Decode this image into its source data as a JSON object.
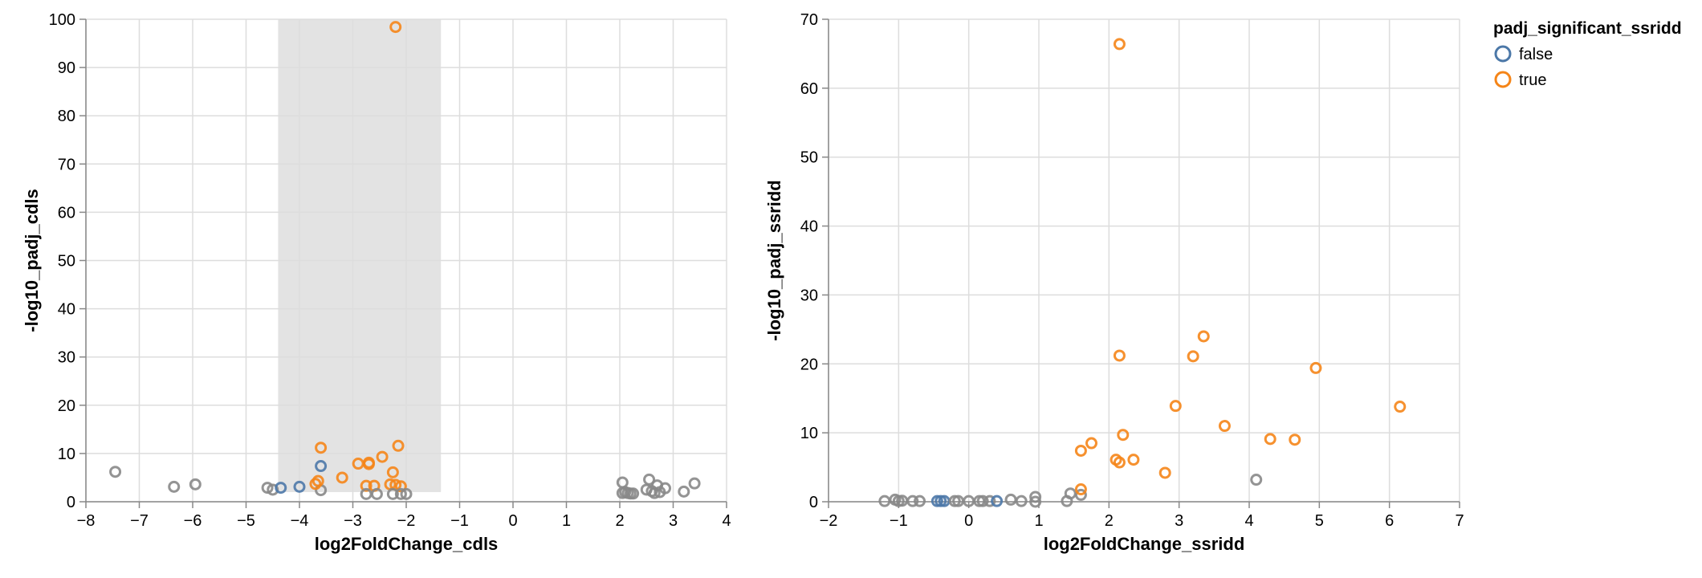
{
  "colors": {
    "false": "#4c78a8",
    "true": "#f58518",
    "gray": "#888888",
    "selection": "#e3e3e3"
  },
  "legend": {
    "title": "padj_significant_ssridd",
    "items": [
      {
        "label": "false",
        "color": "#4c78a8"
      },
      {
        "label": "true",
        "color": "#f58518"
      }
    ]
  },
  "chart_data": [
    {
      "type": "scatter",
      "xlabel": "log2FoldChange_cdls",
      "ylabel": "-log10_padj_cdls",
      "xlim": [
        -8,
        4
      ],
      "ylim": [
        0,
        100
      ],
      "xticks": [
        -8,
        -7,
        -6,
        -5,
        -4,
        -3,
        -2,
        -1,
        0,
        1,
        2,
        3,
        4
      ],
      "yticks": [
        0,
        10,
        20,
        30,
        40,
        50,
        60,
        70,
        80,
        90,
        100
      ],
      "grid": true,
      "selection_brush": {
        "x": [
          -4.4,
          -1.35
        ],
        "y": [
          2,
          100
        ]
      },
      "points": [
        {
          "x": -7.45,
          "y": 6.2,
          "group": "gray"
        },
        {
          "x": -6.35,
          "y": 3.1,
          "group": "gray"
        },
        {
          "x": -5.95,
          "y": 3.6,
          "group": "gray"
        },
        {
          "x": -4.6,
          "y": 2.9,
          "group": "gray"
        },
        {
          "x": -4.5,
          "y": 2.5,
          "group": "gray"
        },
        {
          "x": -4.35,
          "y": 2.9,
          "group": "false"
        },
        {
          "x": -4.0,
          "y": 3.1,
          "group": "false"
        },
        {
          "x": -3.6,
          "y": 7.4,
          "group": "false"
        },
        {
          "x": -3.6,
          "y": 2.4,
          "group": "gray"
        },
        {
          "x": -3.6,
          "y": 11.2,
          "group": "true"
        },
        {
          "x": -3.65,
          "y": 4.3,
          "group": "true"
        },
        {
          "x": -3.7,
          "y": 3.7,
          "group": "true"
        },
        {
          "x": -3.2,
          "y": 5.0,
          "group": "true"
        },
        {
          "x": -2.9,
          "y": 7.9,
          "group": "true"
        },
        {
          "x": -2.7,
          "y": 8.1,
          "group": "true"
        },
        {
          "x": -2.7,
          "y": 7.8,
          "group": "true"
        },
        {
          "x": -2.75,
          "y": 3.3,
          "group": "true"
        },
        {
          "x": -2.6,
          "y": 3.3,
          "group": "true"
        },
        {
          "x": -2.75,
          "y": 1.6,
          "group": "gray"
        },
        {
          "x": -2.55,
          "y": 1.6,
          "group": "gray"
        },
        {
          "x": -2.45,
          "y": 9.3,
          "group": "true"
        },
        {
          "x": -2.3,
          "y": 3.6,
          "group": "true"
        },
        {
          "x": -2.25,
          "y": 6.1,
          "group": "true"
        },
        {
          "x": -2.2,
          "y": 3.5,
          "group": "true"
        },
        {
          "x": -2.15,
          "y": 11.6,
          "group": "true"
        },
        {
          "x": -2.1,
          "y": 3.2,
          "group": "true"
        },
        {
          "x": -2.1,
          "y": 1.6,
          "group": "gray"
        },
        {
          "x": -2.25,
          "y": 1.6,
          "group": "gray"
        },
        {
          "x": -2.0,
          "y": 1.6,
          "group": "gray"
        },
        {
          "x": -2.2,
          "y": 98.4,
          "group": "true"
        },
        {
          "x": 2.05,
          "y": 4.0,
          "group": "gray"
        },
        {
          "x": 2.05,
          "y": 1.8,
          "group": "gray"
        },
        {
          "x": 2.1,
          "y": 2.0,
          "group": "gray"
        },
        {
          "x": 2.15,
          "y": 1.8,
          "group": "gray"
        },
        {
          "x": 2.2,
          "y": 1.7,
          "group": "gray"
        },
        {
          "x": 2.25,
          "y": 1.7,
          "group": "gray"
        },
        {
          "x": 2.5,
          "y": 2.5,
          "group": "gray"
        },
        {
          "x": 2.55,
          "y": 4.6,
          "group": "gray"
        },
        {
          "x": 2.6,
          "y": 2.2,
          "group": "gray"
        },
        {
          "x": 2.65,
          "y": 1.8,
          "group": "gray"
        },
        {
          "x": 2.7,
          "y": 3.4,
          "group": "gray"
        },
        {
          "x": 2.75,
          "y": 2.0,
          "group": "gray"
        },
        {
          "x": 2.85,
          "y": 2.8,
          "group": "gray"
        },
        {
          "x": 3.2,
          "y": 2.1,
          "group": "gray"
        },
        {
          "x": 3.4,
          "y": 3.8,
          "group": "gray"
        }
      ]
    },
    {
      "type": "scatter",
      "xlabel": "log2FoldChange_ssridd",
      "ylabel": "-log10_padj_ssridd",
      "xlim": [
        -2,
        7
      ],
      "ylim": [
        0,
        70
      ],
      "xticks": [
        -2,
        -1,
        0,
        1,
        2,
        3,
        4,
        5,
        6,
        7
      ],
      "yticks": [
        0,
        10,
        20,
        30,
        40,
        50,
        60,
        70
      ],
      "grid": true,
      "points": [
        {
          "x": -1.2,
          "y": 0.1,
          "group": "gray"
        },
        {
          "x": -1.05,
          "y": 0.3,
          "group": "gray"
        },
        {
          "x": -1.0,
          "y": 0.1,
          "group": "gray"
        },
        {
          "x": -0.95,
          "y": 0.15,
          "group": "gray"
        },
        {
          "x": -0.8,
          "y": 0.1,
          "group": "gray"
        },
        {
          "x": -0.7,
          "y": 0.1,
          "group": "gray"
        },
        {
          "x": -0.45,
          "y": 0.1,
          "group": "false"
        },
        {
          "x": -0.4,
          "y": 0.1,
          "group": "false"
        },
        {
          "x": -0.35,
          "y": 0.1,
          "group": "false"
        },
        {
          "x": -0.2,
          "y": 0.1,
          "group": "gray"
        },
        {
          "x": -0.15,
          "y": 0.1,
          "group": "gray"
        },
        {
          "x": 0.0,
          "y": 0.1,
          "group": "gray"
        },
        {
          "x": 0.15,
          "y": 0.1,
          "group": "gray"
        },
        {
          "x": 0.2,
          "y": 0.1,
          "group": "gray"
        },
        {
          "x": 0.3,
          "y": 0.1,
          "group": "gray"
        },
        {
          "x": 0.4,
          "y": 0.1,
          "group": "false"
        },
        {
          "x": 0.6,
          "y": 0.3,
          "group": "gray"
        },
        {
          "x": 0.75,
          "y": 0.1,
          "group": "gray"
        },
        {
          "x": 0.95,
          "y": 0.7,
          "group": "gray"
        },
        {
          "x": 0.95,
          "y": 0.0,
          "group": "gray"
        },
        {
          "x": 1.4,
          "y": 0.1,
          "group": "gray"
        },
        {
          "x": 1.45,
          "y": 1.2,
          "group": "gray"
        },
        {
          "x": 1.6,
          "y": 1.0,
          "group": "gray"
        },
        {
          "x": 1.6,
          "y": 1.8,
          "group": "true"
        },
        {
          "x": 1.6,
          "y": 7.4,
          "group": "true"
        },
        {
          "x": 1.75,
          "y": 8.5,
          "group": "true"
        },
        {
          "x": 2.1,
          "y": 6.1,
          "group": "true"
        },
        {
          "x": 2.15,
          "y": 5.7,
          "group": "true"
        },
        {
          "x": 2.15,
          "y": 66.4,
          "group": "true"
        },
        {
          "x": 2.15,
          "y": 21.2,
          "group": "true"
        },
        {
          "x": 2.2,
          "y": 9.7,
          "group": "true"
        },
        {
          "x": 2.35,
          "y": 6.1,
          "group": "true"
        },
        {
          "x": 2.8,
          "y": 4.2,
          "group": "true"
        },
        {
          "x": 2.95,
          "y": 13.9,
          "group": "true"
        },
        {
          "x": 3.2,
          "y": 21.1,
          "group": "true"
        },
        {
          "x": 3.35,
          "y": 24.0,
          "group": "true"
        },
        {
          "x": 3.65,
          "y": 11.0,
          "group": "true"
        },
        {
          "x": 4.1,
          "y": 3.2,
          "group": "gray"
        },
        {
          "x": 4.3,
          "y": 9.1,
          "group": "true"
        },
        {
          "x": 4.65,
          "y": 9.0,
          "group": "true"
        },
        {
          "x": 4.95,
          "y": 19.4,
          "group": "true"
        },
        {
          "x": 6.15,
          "y": 13.8,
          "group": "true"
        }
      ]
    }
  ]
}
